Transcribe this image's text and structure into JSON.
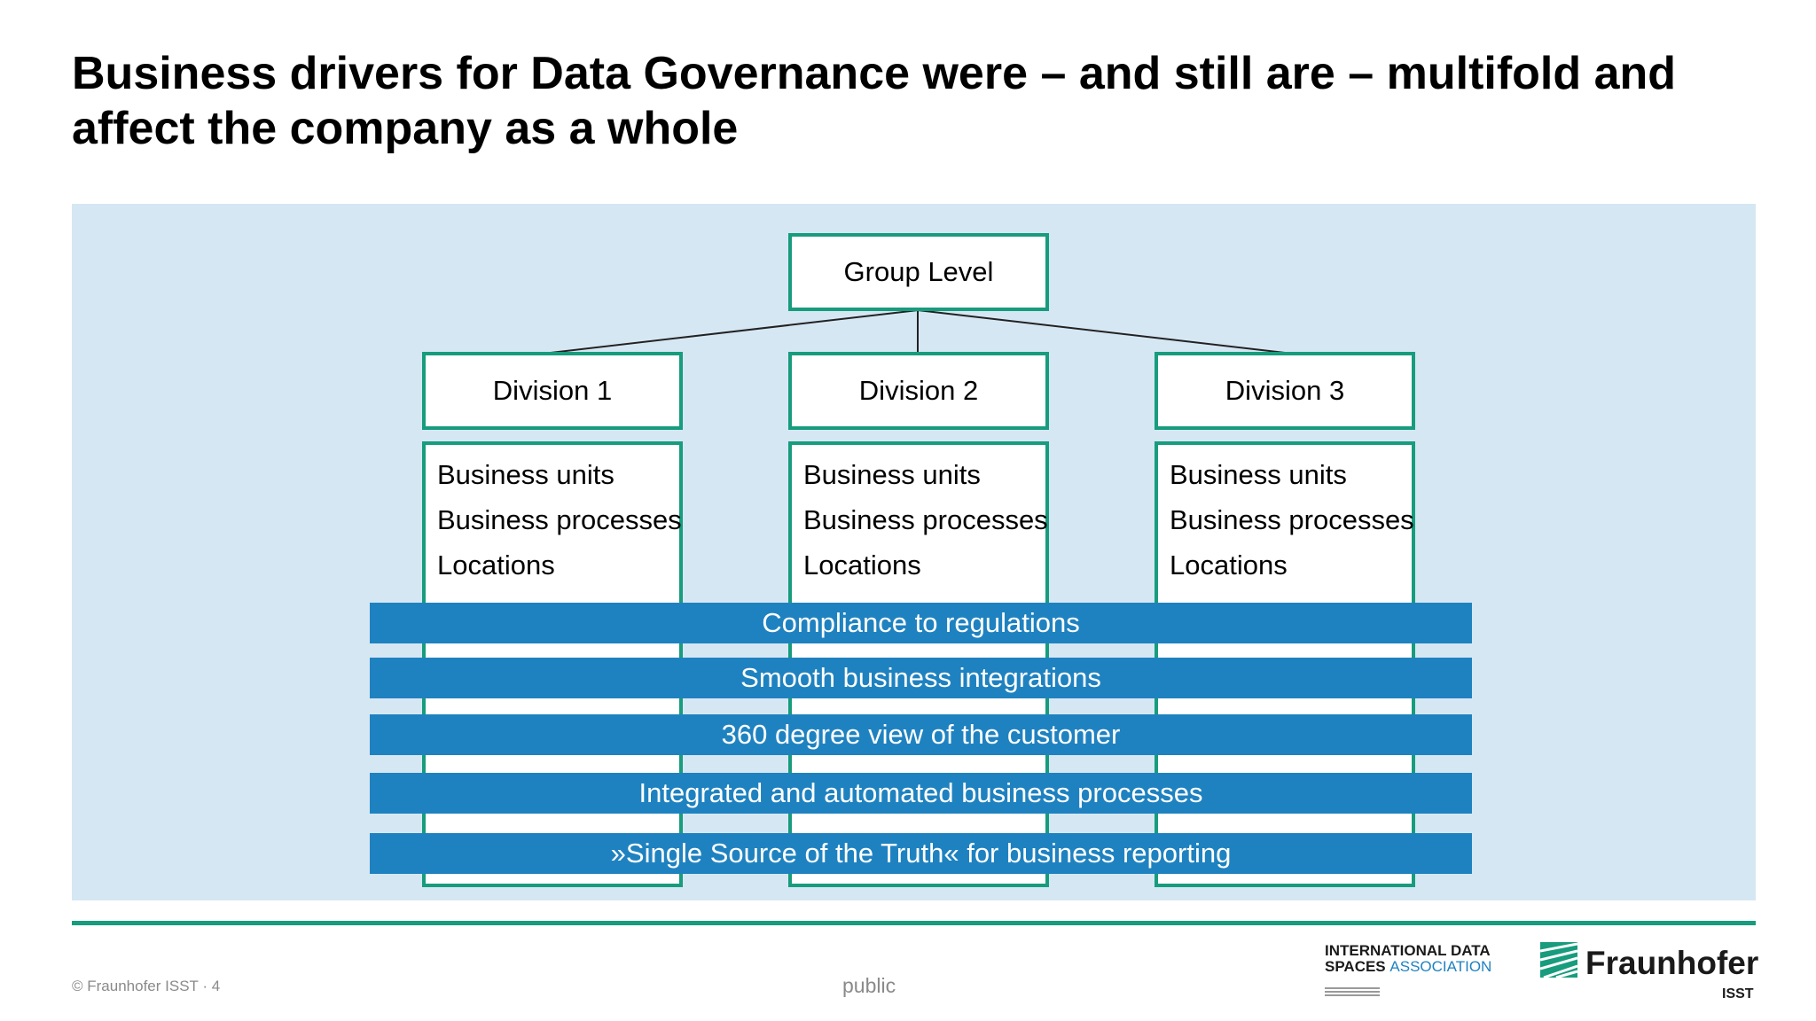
{
  "title": {
    "line1": "Business drivers for Data Governance were – and still are – multifold and",
    "line2": "affect the company as a whole"
  },
  "org": {
    "group": "Group Level",
    "divisions": [
      {
        "name": "Division 1",
        "items": [
          "Business units",
          "Business processes",
          "Locations"
        ]
      },
      {
        "name": "Division 2",
        "items": [
          "Business units",
          "Business processes",
          "Locations"
        ]
      },
      {
        "name": "Division 3",
        "items": [
          "Business units",
          "Business processes",
          "Locations"
        ]
      }
    ]
  },
  "drivers": [
    "Compliance to regulations",
    "Smooth business integrations",
    "360 degree view of the customer",
    "Integrated and automated business processes",
    "»Single Source of the Truth« for business reporting"
  ],
  "footer": {
    "copyright": "© Fraunhofer ISST · 4",
    "classification": "public",
    "ids_line1": "INTERNATIONAL DATA",
    "ids_line2_a": "SPACES",
    "ids_line2_b": "ASSOCIATION",
    "fraunhofer": "Fraunhofer",
    "isst": "ISST"
  },
  "colors": {
    "accent_green": "#179c7d",
    "bar_blue": "#1f82c0",
    "panel_bg": "#d6e7f4"
  }
}
